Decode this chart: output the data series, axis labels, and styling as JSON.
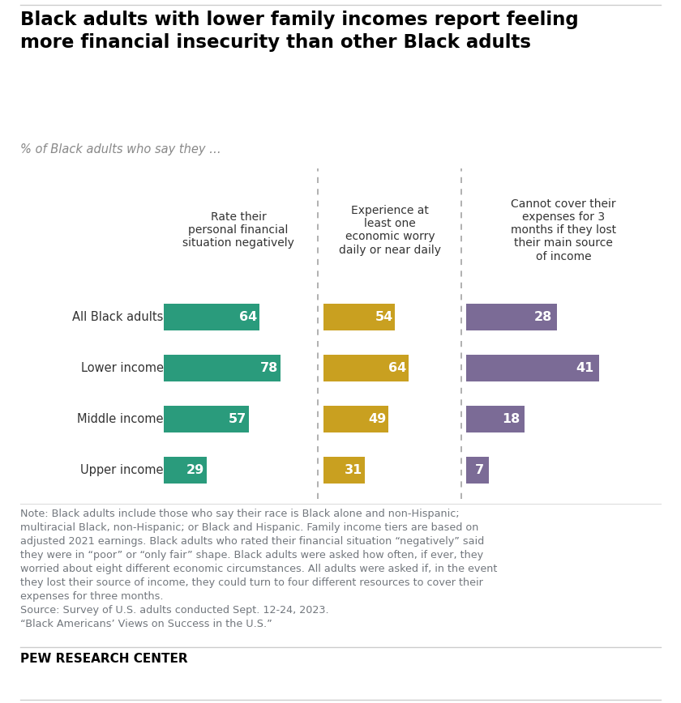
{
  "title": "Black adults with lower family incomes report feeling\nmore financial insecurity than other Black adults",
  "subtitle": "% of Black adults who say they …",
  "categories": [
    "All Black adults",
    "Lower income",
    "Middle income",
    "Upper income"
  ],
  "col_headers": [
    "Rate their\npersonal financial\nsituation negatively",
    "Experience at\nleast one\neconomic worry\ndaily or near daily",
    "Cannot cover their\nexpenses for 3\nmonths if they lost\ntheir main source\nof income"
  ],
  "col1_values": [
    64,
    78,
    57,
    29
  ],
  "col2_values": [
    54,
    64,
    49,
    31
  ],
  "col3_values": [
    28,
    41,
    18,
    7
  ],
  "col1_color": "#2A9B7C",
  "col2_color": "#C9A020",
  "col3_color": "#7B6B96",
  "bar_height": 0.52,
  "note_text": "Note: Black adults include those who say their race is Black alone and non-Hispanic;\nmultiracial Black, non-Hispanic; or Black and Hispanic. Family income tiers are based on\nadjusted 2021 earnings. Black adults who rated their financial situation “negatively” said\nthey were in “poor” or “only fair” shape. Black adults were asked how often, if ever, they\nworried about eight different economic circumstances. All adults were asked if, in the event\nthey lost their source of income, they could turn to four different resources to cover their\nexpenses for three months.",
  "source_line1": "Source: Survey of U.S. adults conducted Sept. 12-24, 2023.",
  "source_line2": "“Black Americans’ Views on Success in the U.S.”",
  "pew_label": "PEW RESEARCH CENTER",
  "bg_color": "#FFFFFF",
  "text_color": "#000000",
  "note_color": "#72777d",
  "label_color": "#333333"
}
